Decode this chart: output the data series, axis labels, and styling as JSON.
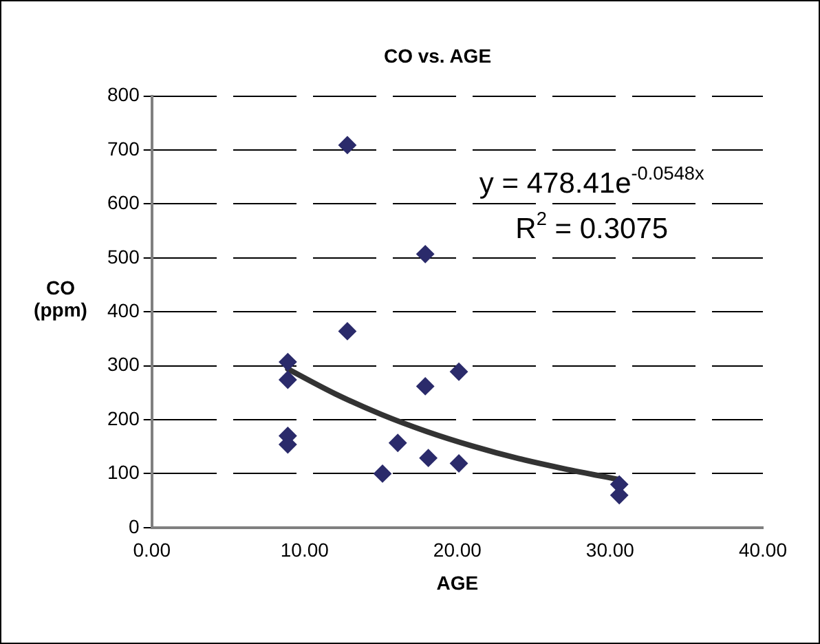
{
  "chart_data": {
    "type": "scatter",
    "title": "CO vs. AGE",
    "xlabel": "AGE",
    "ylabel": "CO (ppm)",
    "xlim": [
      0,
      40
    ],
    "xticks": [
      {
        "value": 0,
        "label": "0.00"
      },
      {
        "value": 10,
        "label": "10.00"
      },
      {
        "value": 20,
        "label": "20.00"
      },
      {
        "value": 30,
        "label": "30.00"
      },
      {
        "value": 40,
        "label": "40.00"
      }
    ],
    "ylim": [
      0,
      800
    ],
    "yticks": [
      0,
      100,
      200,
      300,
      400,
      500,
      600,
      700,
      800
    ],
    "grid": "y",
    "legend": false,
    "marker": "diamond",
    "series": [
      {
        "color": "#2b2b6b",
        "x": [
          8.9,
          8.9,
          8.9,
          8.9,
          12.8,
          12.8,
          15.1,
          16.1,
          17.9,
          17.9,
          18.1,
          20.1,
          20.1,
          30.6,
          30.6
        ],
        "values": [
          307,
          274,
          170,
          154,
          709,
          364,
          100,
          157,
          507,
          262,
          129,
          289,
          119,
          80,
          60
        ]
      },
      {
        "type": "line",
        "color": "#333333",
        "marker": "none",
        "x": [
          8.9,
          12,
          15,
          18,
          21,
          24,
          27,
          30.6
        ],
        "values": [
          294,
          248,
          210,
          178,
          151,
          128,
          109,
          89
        ]
      }
    ],
    "annotations": [
      "y = 478.41e$^{-0.0548x}$",
      "R$^{2}$ = 0.3075"
    ]
  }
}
